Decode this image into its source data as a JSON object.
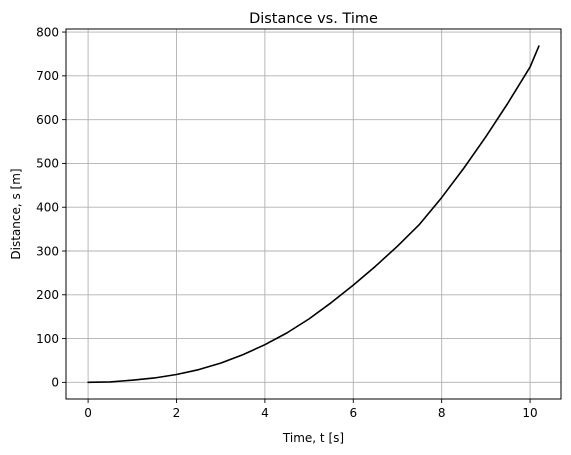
{
  "chart_data": {
    "type": "line",
    "title": "Distance vs. Time",
    "xlabel": "Time, t [s]",
    "ylabel": "Distance, s [m]",
    "xlim": [
      -0.5,
      10.7
    ],
    "ylim": [
      -38,
      807
    ],
    "xticks": [
      0,
      2,
      4,
      6,
      8,
      10
    ],
    "yticks": [
      0,
      100,
      200,
      300,
      400,
      500,
      600,
      700,
      800
    ],
    "xtick_labels": [
      "0",
      "2",
      "4",
      "6",
      "8",
      "10"
    ],
    "ytick_labels": [
      "0",
      "100",
      "200",
      "300",
      "400",
      "500",
      "600",
      "700",
      "800"
    ],
    "grid": true,
    "series": [
      {
        "color": "#000000",
        "x": [
          0,
          0.5,
          1,
          1.5,
          2,
          2.5,
          3,
          3.5,
          4,
          4.5,
          5,
          5.5,
          6,
          6.5,
          7,
          7.5,
          8,
          8.5,
          9,
          9.5,
          10,
          10.2
        ],
        "y": [
          0,
          1,
          5,
          10,
          18,
          29,
          44,
          63,
          86,
          113,
          145,
          182,
          222,
          265,
          311,
          361,
          422,
          489,
          561,
          638,
          720,
          768
        ]
      }
    ]
  }
}
